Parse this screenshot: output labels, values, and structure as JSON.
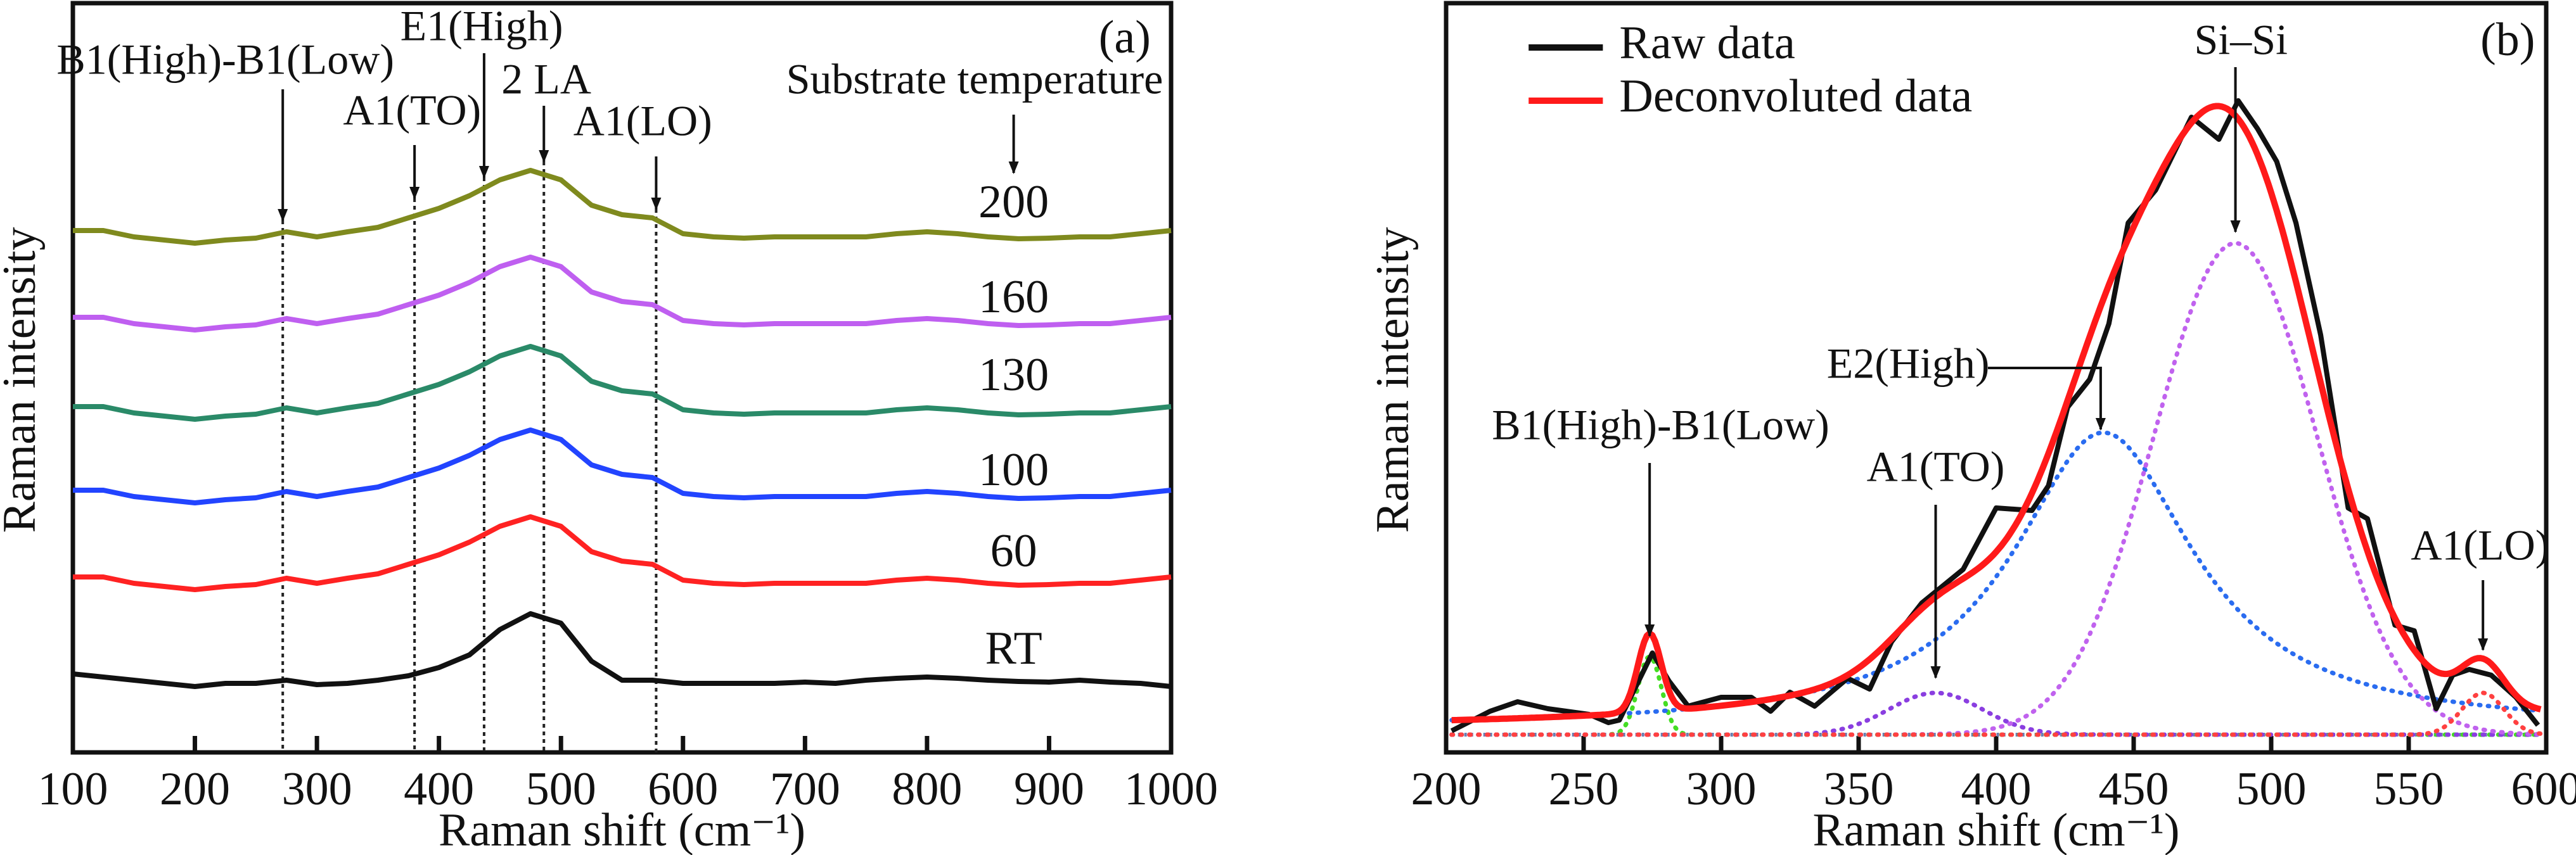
{
  "chart_data": [
    {
      "type": "line",
      "panel_label": "(a)",
      "xlabel": "Raman shift (cm⁻¹)",
      "ylabel": "Raman intensity",
      "xlim": [
        100,
        1000
      ],
      "ylim": [
        0,
        11.83
      ],
      "xticks": [
        100,
        200,
        300,
        400,
        500,
        600,
        700,
        800,
        900,
        1000
      ],
      "x": [
        100,
        125,
        150,
        175,
        200,
        225,
        250,
        275,
        300,
        325,
        350,
        375,
        400,
        425,
        450,
        475,
        500,
        525,
        550,
        575,
        600,
        625,
        650,
        675,
        700,
        725,
        750,
        775,
        800,
        825,
        850,
        875,
        900,
        925,
        950,
        975,
        1000
      ],
      "legend_title": "Substrate temperature",
      "series": [
        {
          "name": "RT",
          "color": "#111111",
          "label_y": 1.57,
          "values": [
            1.24,
            1.19,
            1.14,
            1.09,
            1.04,
            1.09,
            1.09,
            1.14,
            1.07,
            1.09,
            1.14,
            1.21,
            1.34,
            1.54,
            1.94,
            2.19,
            2.04,
            1.44,
            1.14,
            1.14,
            1.09,
            1.09,
            1.09,
            1.09,
            1.11,
            1.09,
            1.14,
            1.17,
            1.19,
            1.17,
            1.14,
            1.12,
            1.11,
            1.14,
            1.11,
            1.09,
            1.04
          ]
        },
        {
          "name": "60",
          "color": "#ff2222",
          "label_y": 3.11,
          "values": [
            2.77,
            2.77,
            2.67,
            2.62,
            2.57,
            2.62,
            2.65,
            2.75,
            2.67,
            2.75,
            2.82,
            2.97,
            3.12,
            3.32,
            3.57,
            3.72,
            3.57,
            3.17,
            3.02,
            2.97,
            2.72,
            2.67,
            2.65,
            2.67,
            2.67,
            2.67,
            2.67,
            2.72,
            2.75,
            2.72,
            2.67,
            2.64,
            2.65,
            2.67,
            2.67,
            2.72,
            2.77
          ]
        },
        {
          "name": "100",
          "color": "#2244ff",
          "label_y": 4.39,
          "values": [
            4.14,
            4.14,
            4.04,
            3.99,
            3.94,
            3.99,
            4.02,
            4.12,
            4.04,
            4.12,
            4.19,
            4.34,
            4.49,
            4.69,
            4.94,
            5.09,
            4.94,
            4.54,
            4.39,
            4.34,
            4.09,
            4.04,
            4.02,
            4.04,
            4.04,
            4.04,
            4.04,
            4.09,
            4.12,
            4.09,
            4.04,
            4.01,
            4.02,
            4.04,
            4.04,
            4.09,
            4.14
          ]
        },
        {
          "name": "130",
          "color": "#2a8a68",
          "label_y": 5.89,
          "values": [
            5.46,
            5.46,
            5.36,
            5.31,
            5.26,
            5.31,
            5.34,
            5.44,
            5.36,
            5.44,
            5.51,
            5.66,
            5.81,
            6.01,
            6.26,
            6.41,
            6.26,
            5.86,
            5.71,
            5.66,
            5.41,
            5.36,
            5.34,
            5.36,
            5.36,
            5.36,
            5.36,
            5.41,
            5.44,
            5.41,
            5.36,
            5.33,
            5.34,
            5.36,
            5.36,
            5.41,
            5.46
          ]
        },
        {
          "name": "160",
          "color": "#bf5ff0",
          "label_y": 7.12,
          "values": [
            6.87,
            6.87,
            6.77,
            6.72,
            6.67,
            6.72,
            6.75,
            6.85,
            6.77,
            6.85,
            6.92,
            7.07,
            7.22,
            7.42,
            7.67,
            7.82,
            7.67,
            7.27,
            7.12,
            7.07,
            6.82,
            6.77,
            6.75,
            6.77,
            6.77,
            6.77,
            6.77,
            6.82,
            6.85,
            6.82,
            6.77,
            6.74,
            6.75,
            6.77,
            6.77,
            6.82,
            6.87
          ]
        },
        {
          "name": "200",
          "color": "#7f8a1e",
          "label_y": 8.62,
          "values": [
            8.24,
            8.24,
            8.14,
            8.09,
            8.04,
            8.09,
            8.12,
            8.22,
            8.14,
            8.22,
            8.29,
            8.44,
            8.59,
            8.79,
            9.04,
            9.19,
            9.04,
            8.64,
            8.49,
            8.44,
            8.19,
            8.14,
            8.12,
            8.14,
            8.14,
            8.14,
            8.14,
            8.19,
            8.22,
            8.19,
            8.14,
            8.11,
            8.12,
            8.14,
            8.14,
            8.19,
            8.24
          ]
        }
      ],
      "series_label_x": 871,
      "annotations": [
        {
          "label": "B1(High)-B1(Low)",
          "x": 272,
          "label_x": 225,
          "label_y": 10.87,
          "arrow_from": 10.47,
          "arrow_to": 8.4,
          "dotted": true
        },
        {
          "label": "A1(TO)",
          "x": 380,
          "label_x": 378,
          "label_y": 10.07,
          "arrow_from": 9.59,
          "arrow_to": 8.75,
          "dotted": true
        },
        {
          "label": "E1(High)",
          "x": 437,
          "label_x": 435,
          "label_y": 11.4,
          "arrow_from": 11.04,
          "arrow_to": 9.08,
          "dotted": true
        },
        {
          "label": "2 LA",
          "x": 486,
          "label_x": 488,
          "label_y": 10.56,
          "arrow_from": 10.21,
          "arrow_to": 9.33,
          "dotted": true
        },
        {
          "label": "A1(LO)",
          "x": 578,
          "label_x": 567,
          "label_y": 9.9,
          "arrow_from": 9.41,
          "arrow_to": 8.58,
          "dotted": true
        },
        {
          "label": "Substrate temperature",
          "x": 871,
          "label_x": 839,
          "label_y": 10.56,
          "arrow_from": 10.07,
          "arrow_to": 9.15,
          "dotted": false
        }
      ]
    },
    {
      "type": "line",
      "panel_label": "(b)",
      "xlabel": "Raman shift (cm⁻¹)",
      "ylabel": "Raman intensity",
      "xlim": [
        200,
        600
      ],
      "ylim": [
        0,
        11.83
      ],
      "xticks": [
        200,
        250,
        300,
        350,
        400,
        450,
        500,
        550,
        600
      ],
      "legend": [
        {
          "name": "Raw data",
          "color": "#111111"
        },
        {
          "name": "Deconvoluted data",
          "color": "#ff1a1a"
        }
      ],
      "raw_data": {
        "x": [
          202,
          216,
          226,
          237,
          252,
          259,
          263,
          269,
          275,
          281,
          288,
          300,
          311,
          318,
          325,
          334,
          346,
          354,
          362,
          373,
          388,
          400,
          413,
          419,
          426,
          434,
          441,
          448,
          458,
          471,
          481,
          488,
          495,
          502,
          509,
          518,
          528,
          535,
          545,
          552,
          560,
          566,
          572,
          580,
          589,
          597
        ],
        "y": [
          0.34,
          0.65,
          0.8,
          0.69,
          0.6,
          0.47,
          0.51,
          1.04,
          1.57,
          1.13,
          0.73,
          0.87,
          0.87,
          0.65,
          0.95,
          0.73,
          1.17,
          1.0,
          1.75,
          2.36,
          2.89,
          3.86,
          3.82,
          4.21,
          5.45,
          5.89,
          6.77,
          8.36,
          8.88,
          10.03,
          9.68,
          10.29,
          9.85,
          9.33,
          8.36,
          6.59,
          3.86,
          3.69,
          2.01,
          1.92,
          0.69,
          1.22,
          1.31,
          1.22,
          0.87,
          0.43
        ]
      },
      "baseline": 0.38,
      "components": [
        {
          "name": "B1(High)-B1(Low)",
          "center": 274,
          "height": 1.24,
          "fwhm": 10,
          "shape": "gaussian",
          "color": "#44dd22"
        },
        {
          "name": "A1(TO)",
          "center": 378,
          "height": 0.66,
          "fwhm": 40,
          "shape": "gaussian",
          "color": "#8a3ee0"
        },
        {
          "name": "E2(High)",
          "center": 439,
          "height": 4.67,
          "fwhm": 80,
          "shape": "lorentzian",
          "color": "#2a6cf0"
        },
        {
          "name": "Si–Si",
          "center": 487,
          "height": 7.76,
          "fwhm": 70,
          "shape": "gaussian",
          "color": "#c062ee"
        },
        {
          "name": "A1(LO)",
          "center": 577,
          "height": 0.66,
          "fwhm": 18,
          "shape": "gaussian",
          "color": "#ff4040"
        }
      ],
      "annotations": [
        {
          "label": "Si–Si",
          "x": 487,
          "label_x": 489,
          "label_y": 11.18,
          "arrow_from": 10.82,
          "arrow_to": 8.22
        },
        {
          "label": "E2(High)",
          "x": 438,
          "label_x": 368,
          "label_y": 6.07,
          "elbow_from_x": 397,
          "arrow_from": 6.07,
          "arrow_to": 5.1
        },
        {
          "label": "B1(High)-B1(Low)",
          "x": 274,
          "label_x": 278,
          "label_y": 5.1,
          "arrow_from": 4.57,
          "arrow_to": 1.84
        },
        {
          "label": "A1(TO)",
          "x": 378,
          "label_x": 378,
          "label_y": 4.44,
          "arrow_from": 3.91,
          "arrow_to": 1.18
        },
        {
          "label": "A1(LO)",
          "x": 577,
          "label_x": 576,
          "label_y": 3.2,
          "arrow_from": 2.72,
          "arrow_to": 1.62
        }
      ]
    }
  ]
}
